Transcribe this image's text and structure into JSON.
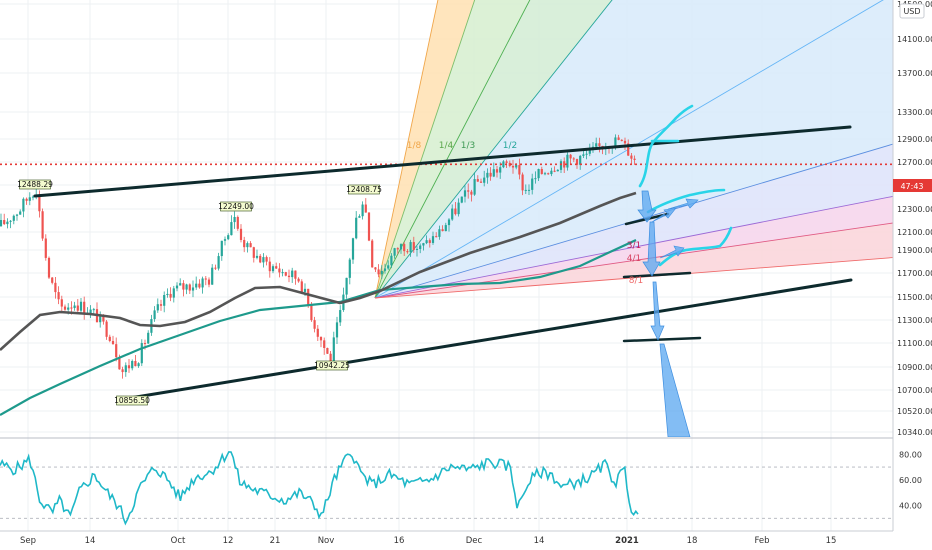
{
  "currency": "USD",
  "chart_data": [
    {
      "type": "line",
      "name": "main",
      "price_axis": {
        "ticks": [
          10340,
          10520,
          10700,
          10900,
          11100,
          11300,
          11500,
          11700,
          11900,
          12100,
          12300,
          12500,
          12700,
          12900,
          13300,
          13700,
          14100,
          14500
        ],
        "tick_labels": [
          "10340.00",
          "10520.00",
          "10700.00",
          "10900.00",
          "11100.00",
          "11300.00",
          "11500.00",
          "11700.00",
          "11900.00",
          "12100.00",
          "12300.00",
          "12500.00",
          "12700.00",
          "12900.00",
          "13300.00",
          "13700.00",
          "14100.00",
          "14500.00"
        ]
      },
      "time_axis": {
        "ticks": [
          "Sep",
          "14",
          "Oct",
          "12",
          "21",
          "Nov",
          "16",
          "Dec",
          "14",
          "2021",
          "18",
          "Feb",
          "15"
        ]
      },
      "current_price_tag": "47:43",
      "current_price": 12680,
      "price_points": [
        {
          "label": "12488.29",
          "value": 12488.29
        },
        {
          "label": "12249.00",
          "value": 12249.0
        },
        {
          "label": "12408.75",
          "value": 12408.75
        },
        {
          "label": "10856.50",
          "value": 10856.5
        },
        {
          "label": "10942.25",
          "value": 10942.25
        }
      ],
      "gann_fan_labels": [
        "1/8",
        "1/4",
        "1/3",
        "1/2",
        "3/1",
        "4/1",
        "8/1"
      ],
      "colors": {
        "ma_fast": "#555555",
        "ma_slow": "#1e9a8c",
        "candle_up": "#26a69a",
        "candle_down": "#ef5350",
        "trendline": "#0d2a2d",
        "projection": "#29d4e8",
        "arrow": "#5aa7f0",
        "price_line": "#e53935"
      }
    },
    {
      "type": "line",
      "name": "rsi",
      "y_axis": {
        "ticks": [
          40,
          60,
          80
        ],
        "tick_labels": [
          "40.00",
          "60.00",
          "80.00"
        ]
      },
      "reference_levels": [
        30,
        70
      ],
      "color": "#1fb8c8"
    }
  ]
}
